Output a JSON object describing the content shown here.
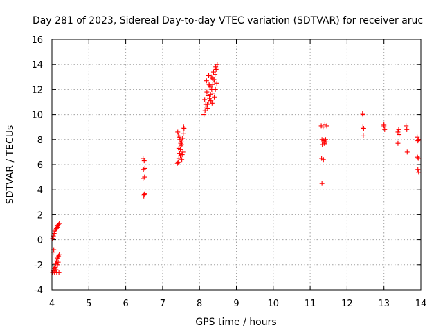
{
  "chart_data": {
    "type": "scatter",
    "title": "Day 281 of 2023, Sidereal Day-to-day VTEC variation (SDTVAR) for receiver aruc",
    "xlabel": "GPS time / hours",
    "ylabel": "SDTVAR / TECUs",
    "xlim": [
      4,
      14
    ],
    "ylim": [
      -4,
      16
    ],
    "xticks": [
      "4",
      "5",
      "6",
      "7",
      "8",
      "9",
      "10",
      "11",
      "12",
      "13",
      "14"
    ],
    "yticks": [
      "-4",
      "-2",
      "0",
      "2",
      "4",
      "6",
      "8",
      "10",
      "12",
      "14",
      "16"
    ],
    "grid": true,
    "marker": "+",
    "color": "#ff0000",
    "series": [
      {
        "name": "SDTVAR",
        "x": [
          4.02,
          4.04,
          4.06,
          4.08,
          4.1,
          4.12,
          4.14,
          4.16,
          4.18,
          4.2,
          4.02,
          4.04,
          4.06,
          4.08,
          4.1,
          4.12,
          4.14,
          4.16,
          4.18,
          4.2,
          4.03,
          4.07,
          4.11,
          4.15,
          4.19,
          4.05,
          4.09,
          4.13,
          4.17,
          6.47,
          6.5,
          6.52,
          6.48,
          6.51,
          6.47,
          6.5,
          6.49,
          6.52,
          7.4,
          7.42,
          7.44,
          7.46,
          7.48,
          7.5,
          7.52,
          7.54,
          7.56,
          7.58,
          7.43,
          7.47,
          7.51,
          7.55,
          7.41,
          7.45,
          7.49,
          7.53,
          7.57,
          7.44,
          7.52,
          7.48,
          8.12,
          8.15,
          8.18,
          8.21,
          8.24,
          8.27,
          8.3,
          8.33,
          8.36,
          8.39,
          8.42,
          8.45,
          8.48,
          8.14,
          8.2,
          8.26,
          8.32,
          8.38,
          8.44,
          8.17,
          8.23,
          8.29,
          8.35,
          8.41,
          8.47,
          8.22,
          8.31,
          8.4,
          8.28,
          8.36,
          8.19,
          8.25,
          8.34,
          8.43,
          11.3,
          11.35,
          11.4,
          11.45,
          11.32,
          11.37,
          11.42,
          11.33,
          11.38,
          11.43,
          11.31,
          11.36,
          11.32,
          12.42,
          12.43,
          12.45,
          12.43,
          12.44,
          13.0,
          13.02,
          13.0,
          13.38,
          13.4,
          13.38,
          13.41,
          13.6,
          13.62,
          13.63,
          13.9,
          13.92,
          13.94,
          13.91,
          13.93,
          13.92,
          13.94
        ],
        "y": [
          0.1,
          0.3,
          0.5,
          0.7,
          0.8,
          0.9,
          1.0,
          1.1,
          1.2,
          1.3,
          -2.6,
          -2.5,
          -2.3,
          -2.1,
          -1.9,
          -1.7,
          -1.5,
          -1.4,
          -1.3,
          -1.2,
          -1.0,
          -2.6,
          -2.4,
          -2.0,
          -2.6,
          -0.8,
          -2.2,
          -2.6,
          -1.8,
          6.5,
          6.3,
          5.7,
          5.6,
          5.0,
          4.9,
          3.6,
          3.5,
          3.7,
          6.1,
          6.2,
          6.5,
          6.9,
          7.2,
          7.5,
          7.8,
          8.1,
          8.5,
          8.9,
          8.3,
          8.0,
          7.6,
          7.0,
          8.6,
          8.2,
          7.7,
          6.8,
          9.0,
          7.3,
          6.4,
          6.7,
          10.0,
          10.3,
          10.6,
          10.8,
          11.0,
          11.3,
          11.6,
          12.0,
          12.4,
          12.8,
          13.2,
          13.6,
          14.0,
          11.2,
          11.8,
          12.4,
          13.0,
          13.4,
          13.8,
          10.8,
          11.5,
          12.2,
          12.9,
          12.6,
          12.5,
          10.5,
          11.1,
          11.4,
          12.3,
          11.7,
          12.7,
          13.1,
          10.9,
          12.0,
          9.1,
          9.0,
          9.2,
          9.1,
          8.0,
          7.9,
          8.0,
          7.6,
          7.7,
          7.8,
          6.5,
          6.4,
          4.5,
          10.1,
          10.0,
          8.9,
          9.0,
          8.3,
          9.1,
          8.8,
          9.2,
          8.6,
          8.8,
          7.7,
          8.4,
          9.1,
          8.8,
          7.0,
          8.2,
          7.9,
          8.0,
          6.6,
          6.5,
          5.6,
          5.4
        ]
      }
    ]
  }
}
